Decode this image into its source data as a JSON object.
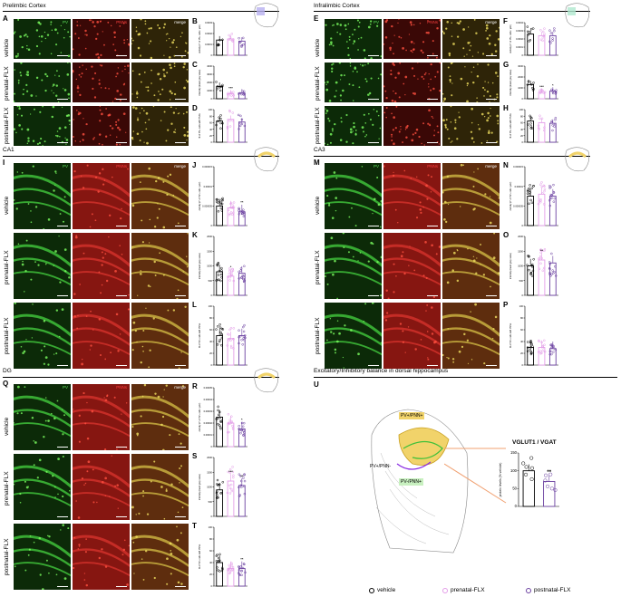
{
  "sections": {
    "pfc": "Prelimbic Cortex",
    "il": "Infralimbic Cortex",
    "ca1": "CA1",
    "ca3": "CA3",
    "dg": "DG",
    "ei": "Excitatory/Inhibitory balance in dorsal hippocampus"
  },
  "channels": {
    "pv": "PV",
    "pnn": "PNNs",
    "merge": "merge"
  },
  "rows": [
    "vehicle",
    "prenatal-FLX",
    "postnatal-FLX"
  ],
  "panel_letters": [
    "A",
    "B",
    "C",
    "D",
    "E",
    "F",
    "G",
    "H",
    "I",
    "J",
    "K",
    "L",
    "M",
    "N",
    "O",
    "P",
    "Q",
    "R",
    "S",
    "T",
    "U"
  ],
  "colors": {
    "vehicle": "#000000",
    "prenatal": "#e39ce8",
    "postnatal": "#6a3fa0",
    "pv_green": "#3fc03a",
    "pnn_red": "#c8302a",
    "highlight": "#f1d36a",
    "connector": "#f0a070"
  },
  "ylabels": {
    "density": "density (n° of PV+ cells / μm²)",
    "intensity": "intensity (mean grey value)",
    "pct": "% of PV+ cells with PNNs"
  },
  "schematic_labels": {
    "pv_pnn_pos": "PV+/PNN+",
    "pv_pnn_neg": "PV+/PNN-",
    "pv_neg_pnn_pos": "PV-/PNN+"
  },
  "panel_u": {
    "title": "VGLUT1 / VGAT",
    "ylabel": "protein levels (% vehicle)",
    "ticks": [
      "0",
      "50",
      "100",
      "150"
    ]
  },
  "legend": [
    "vehicle",
    "prenatal-FLX",
    "postnatal-FLX"
  ],
  "chart_data": [
    {
      "panel": "B",
      "type": "bar",
      "categories": [
        "vehicle",
        "prenatal-FLX",
        "postnatal-FLX"
      ],
      "values": [
        0.00014,
        0.00015,
        0.00013
      ],
      "ylim": [
        0,
        0.0003
      ],
      "yticks": [
        "0",
        "0.0001",
        "0.0002",
        "0.0003"
      ],
      "sig": [
        "",
        "",
        ""
      ]
    },
    {
      "panel": "C",
      "type": "bar",
      "categories": [
        "vehicle",
        "prenatal-FLX",
        "postnatal-FLX"
      ],
      "values": [
        1500,
        600,
        700
      ],
      "ylim": [
        0,
        4000
      ],
      "yticks": [
        "0",
        "1000",
        "2000",
        "3000",
        "4000"
      ],
      "sig": [
        "",
        "***",
        ""
      ]
    },
    {
      "panel": "D",
      "type": "bar",
      "categories": [
        "vehicle",
        "prenatal-FLX",
        "postnatal-FLX"
      ],
      "values": [
        65,
        70,
        62
      ],
      "ylim": [
        0,
        100
      ],
      "yticks": [
        "0",
        "20",
        "40",
        "60",
        "80",
        "100"
      ],
      "sig": [
        "",
        "",
        ""
      ]
    },
    {
      "panel": "F",
      "type": "bar",
      "categories": [
        "vehicle",
        "prenatal-FLX",
        "postnatal-FLX"
      ],
      "values": [
        0.00026,
        0.00024,
        0.00024
      ],
      "ylim": [
        0,
        0.0004
      ],
      "yticks": [
        "0",
        "0.0001",
        "0.0002",
        "0.0003",
        "0.0004"
      ],
      "sig": [
        "",
        "",
        ""
      ]
    },
    {
      "panel": "G",
      "type": "bar",
      "categories": [
        "vehicle",
        "prenatal-FLX",
        "postnatal-FLX"
      ],
      "values": [
        1300,
        600,
        700
      ],
      "ylim": [
        0,
        3000
      ],
      "yticks": [
        "0",
        "1000",
        "2000",
        "3000"
      ],
      "sig": [
        "",
        "***",
        "*"
      ]
    },
    {
      "panel": "H",
      "type": "bar",
      "categories": [
        "vehicle",
        "prenatal-FLX",
        "postnatal-FLX"
      ],
      "values": [
        65,
        60,
        58
      ],
      "ylim": [
        0,
        100
      ],
      "yticks": [
        "0",
        "20",
        "40",
        "60",
        "80",
        "100"
      ],
      "sig": [
        "",
        "",
        ""
      ]
    },
    {
      "panel": "J",
      "type": "bar",
      "categories": [
        "vehicle",
        "prenatal-FLX",
        "postnatal-FLX"
      ],
      "values": [
        5e-06,
        4.5e-06,
        3.5e-06
      ],
      "ylim": [
        0,
        1.5e-05
      ],
      "yticks": [
        "0",
        "0.000005",
        "0.00001",
        "0.000015"
      ],
      "sig": [
        "",
        "",
        "**"
      ]
    },
    {
      "panel": "K",
      "type": "bar",
      "categories": [
        "vehicle",
        "prenatal-FLX",
        "postnatal-FLX"
      ],
      "values": [
        800,
        650,
        750
      ],
      "ylim": [
        0,
        2000
      ],
      "yticks": [
        "0",
        "500",
        "1000",
        "1500",
        "2000"
      ],
      "sig": [
        "",
        "*",
        ""
      ]
    },
    {
      "panel": "L",
      "type": "bar",
      "categories": [
        "vehicle",
        "prenatal-FLX",
        "postnatal-FLX"
      ],
      "values": [
        50,
        45,
        50
      ],
      "ylim": [
        0,
        100
      ],
      "yticks": [
        "0",
        "20",
        "40",
        "60",
        "80",
        "100"
      ],
      "sig": [
        "",
        "",
        ""
      ]
    },
    {
      "panel": "N",
      "type": "bar",
      "categories": [
        "vehicle",
        "prenatal-FLX",
        "postnatal-FLX"
      ],
      "values": [
        7.5e-06,
        8e-06,
        7.5e-06
      ],
      "ylim": [
        0,
        1.5e-05
      ],
      "yticks": [
        "0",
        "0.000005",
        "0.00001",
        "0.000015"
      ],
      "sig": [
        "",
        "",
        ""
      ]
    },
    {
      "panel": "O",
      "type": "bar",
      "categories": [
        "vehicle",
        "prenatal-FLX",
        "postnatal-FLX"
      ],
      "values": [
        1000,
        1200,
        1100
      ],
      "ylim": [
        0,
        2000
      ],
      "yticks": [
        "0",
        "500",
        "1000",
        "1500",
        "2000"
      ],
      "sig": [
        "",
        "**",
        ""
      ]
    },
    {
      "panel": "P",
      "type": "bar",
      "categories": [
        "vehicle",
        "prenatal-FLX",
        "postnatal-FLX"
      ],
      "values": [
        30,
        30,
        28
      ],
      "ylim": [
        0,
        100
      ],
      "yticks": [
        "0",
        "20",
        "40",
        "60",
        "80",
        "100"
      ],
      "sig": [
        "",
        "",
        ""
      ]
    },
    {
      "panel": "R",
      "type": "bar",
      "categories": [
        "vehicle",
        "prenatal-FLX",
        "postnatal-FLX"
      ],
      "values": [
        2.5e-05,
        2e-05,
        1.5e-05
      ],
      "ylim": [
        0,
        5e-05
      ],
      "yticks": [
        "0",
        "0.00001",
        "0.00002",
        "0.00003",
        "0.00004",
        "0.00005"
      ],
      "sig": [
        "",
        "",
        "*"
      ]
    },
    {
      "panel": "S",
      "type": "bar",
      "categories": [
        "vehicle",
        "prenatal-FLX",
        "postnatal-FLX"
      ],
      "values": [
        900,
        1200,
        1050
      ],
      "ylim": [
        0,
        2000
      ],
      "yticks": [
        "0",
        "500",
        "1000",
        "1500",
        "2000"
      ],
      "sig": [
        "",
        "***",
        "**"
      ]
    },
    {
      "panel": "T",
      "type": "bar",
      "categories": [
        "vehicle",
        "prenatal-FLX",
        "postnatal-FLX"
      ],
      "values": [
        40,
        30,
        30
      ],
      "ylim": [
        0,
        100
      ],
      "yticks": [
        "0",
        "20",
        "40",
        "60",
        "80",
        "100"
      ],
      "sig": [
        "",
        "",
        "**"
      ]
    },
    {
      "panel": "U",
      "type": "bar",
      "categories": [
        "vehicle",
        "postnatal-FLX"
      ],
      "values": [
        100,
        70
      ],
      "ylim": [
        0,
        150
      ],
      "yticks": [
        "0",
        "50",
        "100",
        "150"
      ],
      "sig": [
        "",
        "**"
      ]
    }
  ]
}
